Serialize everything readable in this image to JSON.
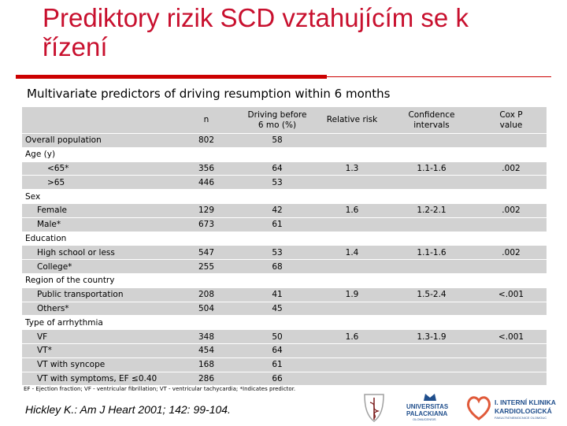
{
  "slide": {
    "title": "Prediktory rizik SCD vztahujícím se k řízení",
    "subtitle": "Multivariate predictors of driving resumption within 6 months"
  },
  "table": {
    "headers": [
      "",
      "n",
      "Driving before 6 mo (%)",
      "Relative risk",
      "Confidence intervals",
      "Cox P value"
    ],
    "rows": [
      {
        "label": "Overall population",
        "indent": 0,
        "n": "802",
        "pct": "58",
        "rr": "",
        "ci": "",
        "p": "",
        "shaded": true
      },
      {
        "label": "Age (y)",
        "indent": 0,
        "n": "",
        "pct": "",
        "rr": "",
        "ci": "",
        "p": "",
        "shaded": false
      },
      {
        "label": "<65*",
        "indent": 2,
        "n": "356",
        "pct": "64",
        "rr": "1.3",
        "ci": "1.1-1.6",
        "p": ".002",
        "shaded": true
      },
      {
        "label": ">65",
        "indent": 2,
        "n": "446",
        "pct": "53",
        "rr": "",
        "ci": "",
        "p": "",
        "shaded": true
      },
      {
        "label": "Sex",
        "indent": 0,
        "n": "",
        "pct": "",
        "rr": "",
        "ci": "",
        "p": "",
        "shaded": false
      },
      {
        "label": "Female",
        "indent": 1,
        "n": "129",
        "pct": "42",
        "rr": "1.6",
        "ci": "1.2-2.1",
        "p": ".002",
        "shaded": true
      },
      {
        "label": "Male*",
        "indent": 1,
        "n": "673",
        "pct": "61",
        "rr": "",
        "ci": "",
        "p": "",
        "shaded": true
      },
      {
        "label": "Education",
        "indent": 0,
        "n": "",
        "pct": "",
        "rr": "",
        "ci": "",
        "p": "",
        "shaded": false
      },
      {
        "label": "High school or less",
        "indent": 1,
        "n": "547",
        "pct": "53",
        "rr": "1.4",
        "ci": "1.1-1.6",
        "p": ".002",
        "shaded": true
      },
      {
        "label": "College*",
        "indent": 1,
        "n": "255",
        "pct": "68",
        "rr": "",
        "ci": "",
        "p": "",
        "shaded": true
      },
      {
        "label": "Region of the country",
        "indent": 0,
        "n": "",
        "pct": "",
        "rr": "",
        "ci": "",
        "p": "",
        "shaded": false
      },
      {
        "label": "Public transportation",
        "indent": 1,
        "n": "208",
        "pct": "41",
        "rr": "1.9",
        "ci": "1.5-2.4",
        "p": "<.001",
        "shaded": true
      },
      {
        "label": "Others*",
        "indent": 1,
        "n": "504",
        "pct": "45",
        "rr": "",
        "ci": "",
        "p": "",
        "shaded": true
      },
      {
        "label": "Type of arrhythmia",
        "indent": 0,
        "n": "",
        "pct": "",
        "rr": "",
        "ci": "",
        "p": "",
        "shaded": false
      },
      {
        "label": "VF",
        "indent": 1,
        "n": "348",
        "pct": "50",
        "rr": "1.6",
        "ci": "1.3-1.9",
        "p": "<.001",
        "shaded": true
      },
      {
        "label": "VT*",
        "indent": 1,
        "n": "454",
        "pct": "64",
        "rr": "",
        "ci": "",
        "p": "",
        "shaded": true
      },
      {
        "label": "VT with syncope",
        "indent": 1,
        "n": "168",
        "pct": "61",
        "rr": "",
        "ci": "",
        "p": "",
        "shaded": true
      },
      {
        "label": "VT with symptoms, EF ≤0.40",
        "indent": 1,
        "n": "286",
        "pct": "66",
        "rr": "",
        "ci": "",
        "p": "",
        "shaded": true
      }
    ]
  },
  "footnote": "EF - Ejection fraction; VF - ventricular fibrillation; VT - ventricular tachycardia; *Indicates predictor.",
  "citation": "Hickley K.: Am J Heart 2001; 142: 99-104.",
  "logos": {
    "university": [
      "UNIVERSITAS",
      "PALACKIANA",
      "OLOMUCENSIS"
    ],
    "clinic": [
      "I. INTERNÍ KLINIKA",
      "KARDIOLOGICKÁ",
      "FAKULTNÍ NEMOCNICE OLOMOUC"
    ]
  },
  "colors": {
    "title": "#c8102e",
    "rule": "#cc0000",
    "row_shade": "#d2d2d2",
    "logo": "#1f4e8c"
  }
}
